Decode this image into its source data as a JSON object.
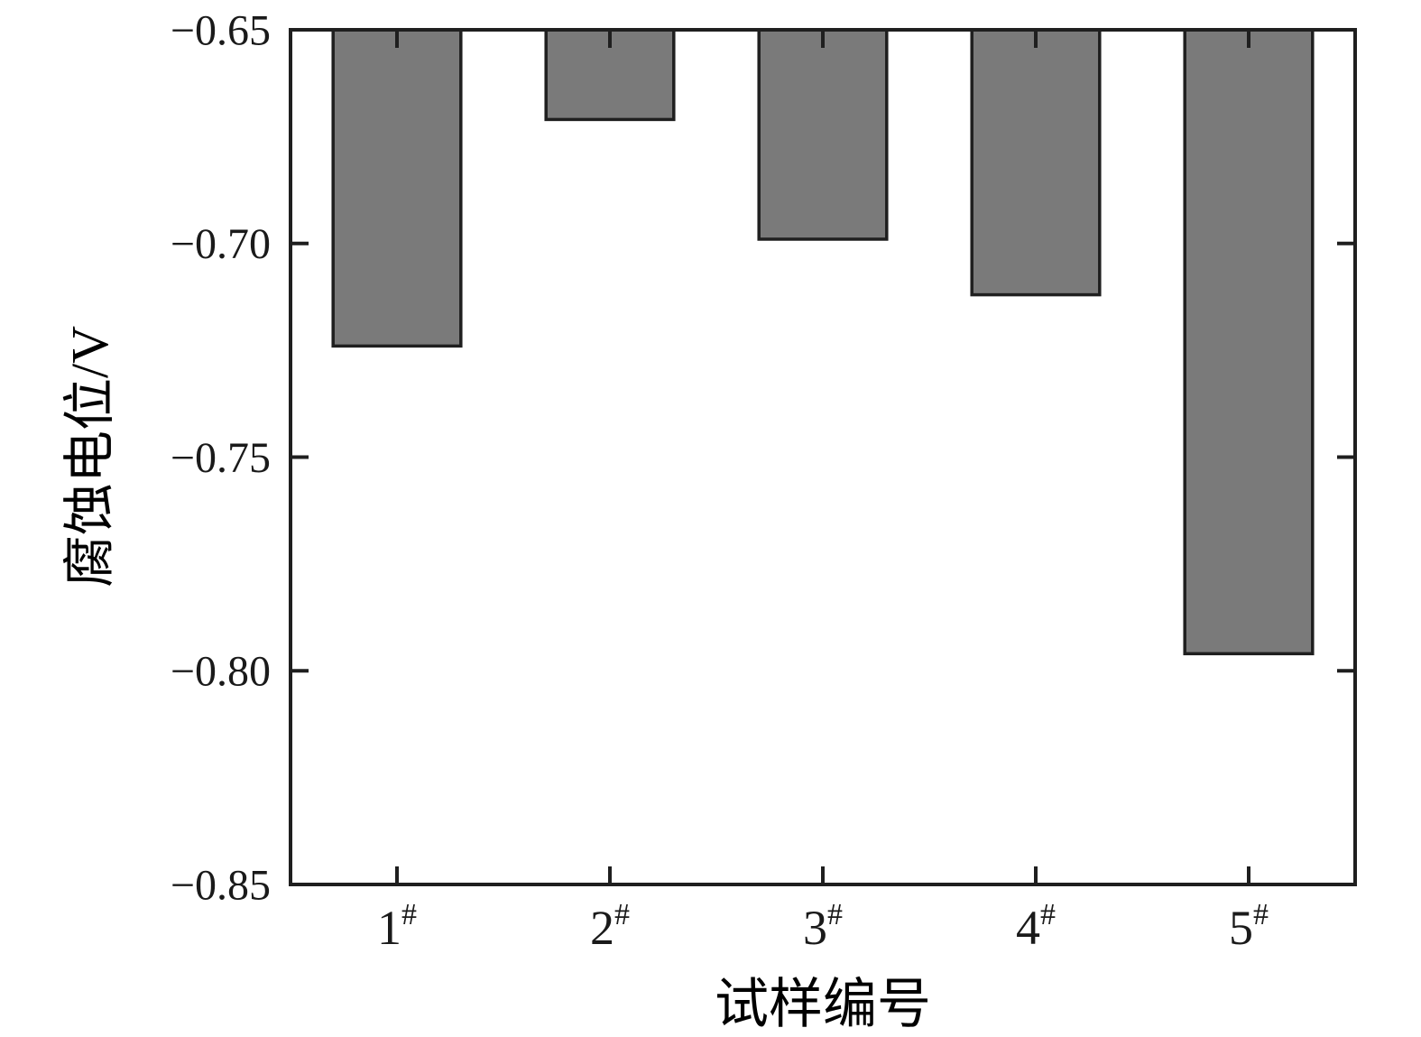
{
  "chart_data": {
    "type": "bar",
    "title": "",
    "xlabel": "试样编号",
    "ylabel": "腐蚀电位/V",
    "categories": [
      "1#",
      "2#",
      "3#",
      "4#",
      "5#"
    ],
    "values": [
      -0.724,
      -0.671,
      -0.699,
      -0.712,
      -0.796
    ],
    "bar_base": -0.65,
    "ylim": [
      -0.85,
      -0.65
    ],
    "yticks": [
      -0.65,
      -0.7,
      -0.75,
      -0.8,
      -0.85
    ],
    "ytick_labels": [
      "−0.65",
      "−0.70",
      "−0.75",
      "−0.80",
      "−0.85"
    ],
    "grid": false,
    "legend": "none",
    "tick_direction": "in",
    "bar_width_fraction": 0.6,
    "colors": {
      "bar_fill": "#7a7a7a",
      "bar_edge": "#1f1f1f",
      "axis": "#1f1f1f",
      "text": "#1a1a1a",
      "background": "#ffffff"
    }
  }
}
